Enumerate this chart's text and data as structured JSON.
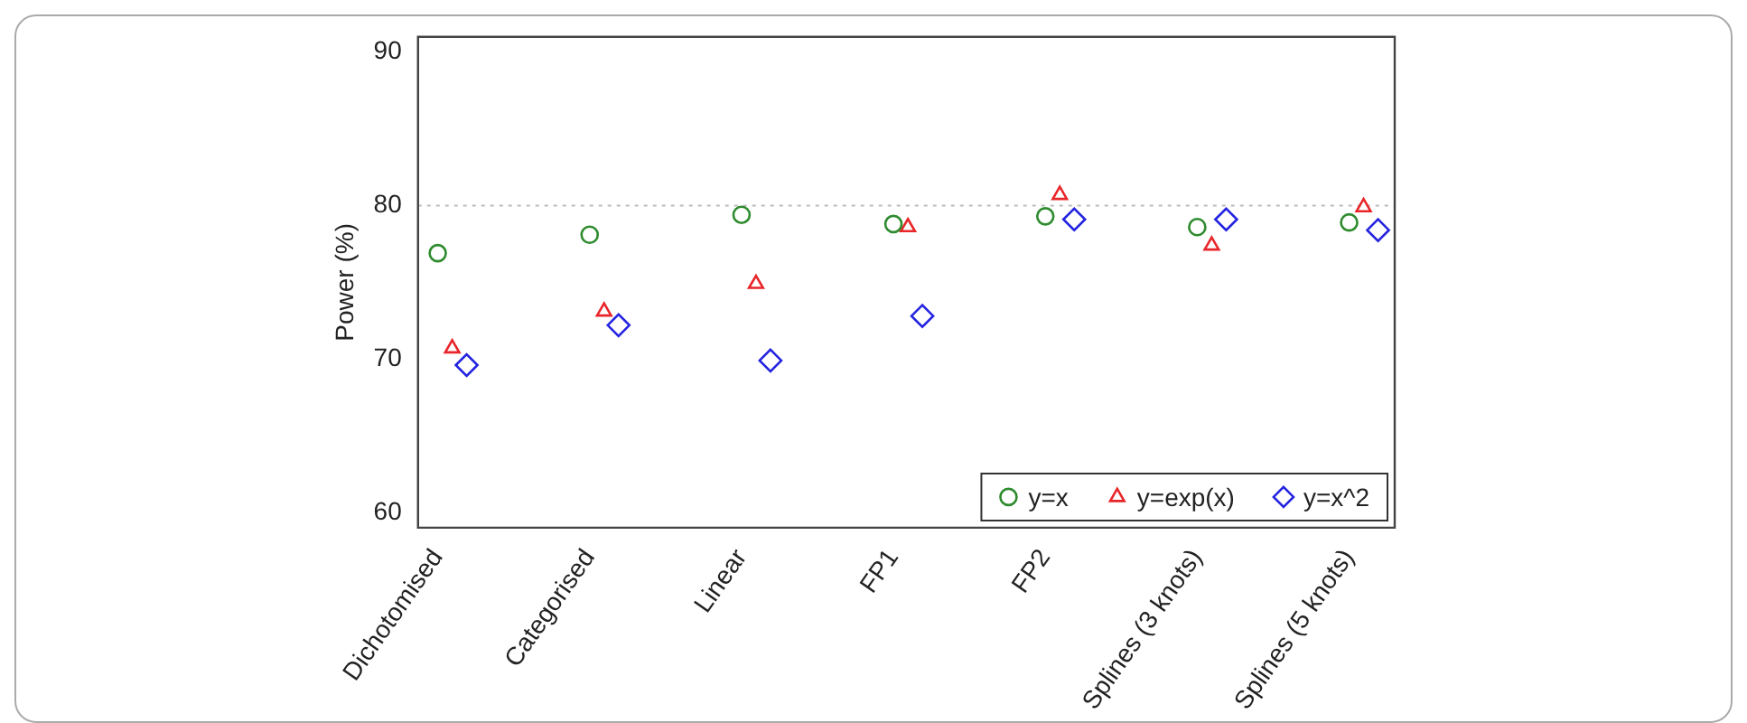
{
  "chart_data": {
    "type": "scatter",
    "ylabel": "Power (%)",
    "categories": [
      "Dichotomised",
      "Categorised",
      "Linear",
      "FP1",
      "FP2",
      "Splines (3 knots)",
      "Splines (5 knots)"
    ],
    "series": [
      {
        "name": "y=x",
        "color": "#2e8b2e",
        "marker": "circle",
        "values": [
          76.9,
          78.1,
          79.4,
          78.8,
          79.3,
          78.6,
          78.9
        ]
      },
      {
        "name": "y=exp(x)",
        "color": "#e8262a",
        "marker": "triangle",
        "values": [
          70.7,
          73.1,
          74.9,
          78.6,
          80.7,
          77.4,
          79.9
        ]
      },
      {
        "name": "y=x^2",
        "color": "#2323e0",
        "marker": "diamond",
        "values": [
          69.6,
          72.2,
          69.9,
          72.8,
          79.1,
          79.1,
          78.4
        ]
      }
    ],
    "ylim": [
      59,
      91
    ],
    "yticks": [
      60,
      70,
      80,
      90
    ],
    "grid": false,
    "legend": "bottom right",
    "ref_lines": [
      {
        "axis": "y",
        "value": 80,
        "color": "#bbbbbb",
        "line_style": "dotted"
      }
    ]
  }
}
